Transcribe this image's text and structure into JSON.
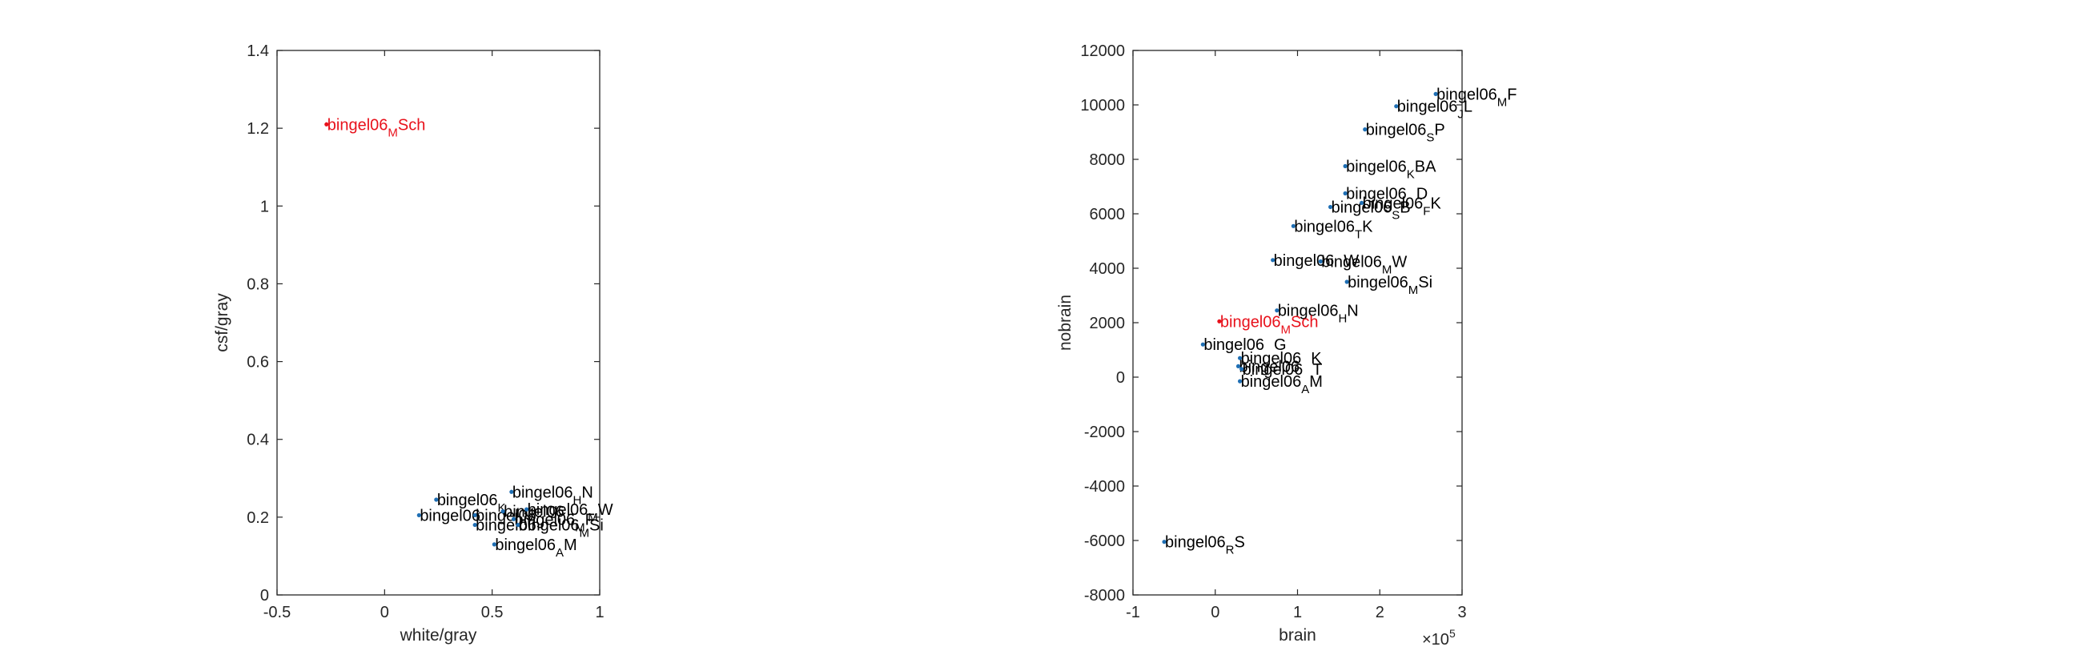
{
  "chart_data": [
    {
      "type": "scatter",
      "title": "",
      "xlabel": "white/gray",
      "ylabel": "csf/gray",
      "xlim": [
        -0.5,
        1
      ],
      "ylim": [
        0,
        1.4
      ],
      "xticks": [
        "-0.5",
        "0",
        "0.5",
        "1"
      ],
      "yticks": [
        "0",
        "0.2",
        "0.4",
        "0.6",
        "0.8",
        "1",
        "1.2",
        "1.4"
      ],
      "xtick_values": [
        -0.5,
        0,
        0.5,
        1
      ],
      "ytick_values": [
        0,
        0.2,
        0.4,
        0.6,
        0.8,
        1,
        1.2,
        1.4
      ],
      "grid": false,
      "points": [
        {
          "x": -0.27,
          "y": 1.21,
          "base": "bingel06",
          "sub": "M",
          "tail": "Sch",
          "color": "#e8111b",
          "point_color": "#e8111b"
        },
        {
          "x": 0.59,
          "y": 0.265,
          "base": "bingel06",
          "sub": "H",
          "tail": "N",
          "color": "#000000",
          "point_color": "#1f6fb4"
        },
        {
          "x": 0.24,
          "y": 0.245,
          "base": "bingel06",
          "sub": "K",
          "tail": "",
          "color": "#000000",
          "point_color": "#1f6fb4"
        },
        {
          "x": 0.16,
          "y": 0.205,
          "base": "bingel06",
          "sub": "",
          "tail": "",
          "color": "#000000",
          "point_color": "#1f6fb4"
        },
        {
          "x": 0.42,
          "y": 0.205,
          "base": "bingel06",
          "sub": "",
          "tail": "",
          "color": "#000000",
          "point_color": "#1f6fb4"
        },
        {
          "x": 0.55,
          "y": 0.215,
          "base": "bingel06",
          "sub": "",
          "tail": "",
          "color": "#000000",
          "point_color": "#1f6fb4"
        },
        {
          "x": 0.66,
          "y": 0.22,
          "base": "bingel06",
          "sub": "M",
          "tail": "W",
          "color": "#000000",
          "point_color": "#1f6fb4"
        },
        {
          "x": 0.6,
          "y": 0.195,
          "base": "bingel06",
          "sub": "M",
          "tail": "F",
          "color": "#000000",
          "point_color": "#1f6fb4"
        },
        {
          "x": 0.42,
          "y": 0.18,
          "base": "bingel06",
          "sub": "",
          "tail": "",
          "color": "#000000",
          "point_color": "#1f6fb4"
        },
        {
          "x": 0.62,
          "y": 0.18,
          "base": "bingel06",
          "sub": "M",
          "tail": "Si",
          "color": "#000000",
          "point_color": "#1f6fb4"
        },
        {
          "x": 0.51,
          "y": 0.13,
          "base": "bingel06",
          "sub": "A",
          "tail": "M",
          "color": "#000000",
          "point_color": "#1f6fb4"
        }
      ]
    },
    {
      "type": "scatter",
      "title": "",
      "xlabel": "brain",
      "ylabel": "nobrain",
      "xlim": [
        -1,
        3
      ],
      "ylim": [
        -8000,
        12000
      ],
      "xticks": [
        "-1",
        "0",
        "1",
        "2",
        "3"
      ],
      "yticks": [
        "-8000",
        "-6000",
        "-4000",
        "-2000",
        "0",
        "2000",
        "4000",
        "6000",
        "8000",
        "10000",
        "12000"
      ],
      "xtick_values": [
        -1,
        0,
        1,
        2,
        3
      ],
      "ytick_values": [
        -8000,
        -6000,
        -4000,
        -2000,
        0,
        2000,
        4000,
        6000,
        8000,
        10000,
        12000
      ],
      "x_exponent_base": "×10",
      "x_exponent": "5",
      "grid": false,
      "points": [
        {
          "x": 2.68,
          "y": 10400,
          "base": "bingel06",
          "sub": "M",
          "tail": "F",
          "color": "#000000",
          "point_color": "#1f6fb4"
        },
        {
          "x": 2.2,
          "y": 9950,
          "base": "bingel06",
          "sub": "J",
          "tail": "L",
          "color": "#000000",
          "point_color": "#1f6fb4"
        },
        {
          "x": 1.82,
          "y": 9100,
          "base": "bingel06",
          "sub": "S",
          "tail": "P",
          "color": "#000000",
          "point_color": "#1f6fb4"
        },
        {
          "x": 1.58,
          "y": 7750,
          "base": "bingel06",
          "sub": "K",
          "tail": "BA",
          "color": "#000000",
          "point_color": "#1f6fb4"
        },
        {
          "x": 1.58,
          "y": 6750,
          "base": "bingel06",
          "sub": "",
          "tail": "D",
          "color": "#000000",
          "point_color": "#1f6fb4"
        },
        {
          "x": 1.78,
          "y": 6400,
          "base": "bingel06",
          "sub": "F",
          "tail": "K",
          "color": "#000000",
          "point_color": "#1f6fb4"
        },
        {
          "x": 1.4,
          "y": 6250,
          "base": "bingel06",
          "sub": "S",
          "tail": "B",
          "color": "#000000",
          "point_color": "#1f6fb4"
        },
        {
          "x": 0.95,
          "y": 5550,
          "base": "bingel06",
          "sub": "T",
          "tail": "K",
          "color": "#000000",
          "point_color": "#1f6fb4"
        },
        {
          "x": 0.7,
          "y": 4300,
          "base": "bingel06",
          "sub": "",
          "tail": "W",
          "color": "#000000",
          "point_color": "#1f6fb4"
        },
        {
          "x": 1.28,
          "y": 4250,
          "base": "bingel06",
          "sub": "M",
          "tail": "W",
          "color": "#000000",
          "point_color": "#1f6fb4"
        },
        {
          "x": 1.6,
          "y": 3500,
          "base": "bingel06",
          "sub": "M",
          "tail": "Si",
          "color": "#000000",
          "point_color": "#1f6fb4"
        },
        {
          "x": 0.75,
          "y": 2450,
          "base": "bingel06",
          "sub": "H",
          "tail": "N",
          "color": "#000000",
          "point_color": "#1f6fb4"
        },
        {
          "x": 0.05,
          "y": 2050,
          "base": "bingel06",
          "sub": "M",
          "tail": "Sch",
          "color": "#e8111b",
          "point_color": "#e8111b"
        },
        {
          "x": -0.15,
          "y": 1200,
          "base": "bingel06",
          "sub": "",
          "tail": "G",
          "color": "#000000",
          "point_color": "#1f6fb4"
        },
        {
          "x": 0.3,
          "y": 700,
          "base": "bingel06",
          "sub": "",
          "tail": "K",
          "color": "#000000",
          "point_color": "#1f6fb4"
        },
        {
          "x": 0.28,
          "y": 400,
          "base": "bingel06",
          "sub": "",
          "tail": "",
          "color": "#000000",
          "point_color": "#1f6fb4"
        },
        {
          "x": 0.32,
          "y": 300,
          "base": "bingel06",
          "sub": "",
          "tail": "T",
          "color": "#000000",
          "point_color": "#1f6fb4"
        },
        {
          "x": 0.3,
          "y": -150,
          "base": "bingel06",
          "sub": "A",
          "tail": "M",
          "color": "#000000",
          "point_color": "#1f6fb4"
        },
        {
          "x": -0.62,
          "y": -6050,
          "base": "bingel06",
          "sub": "R",
          "tail": "S",
          "color": "#000000",
          "point_color": "#1f6fb4"
        }
      ]
    }
  ]
}
